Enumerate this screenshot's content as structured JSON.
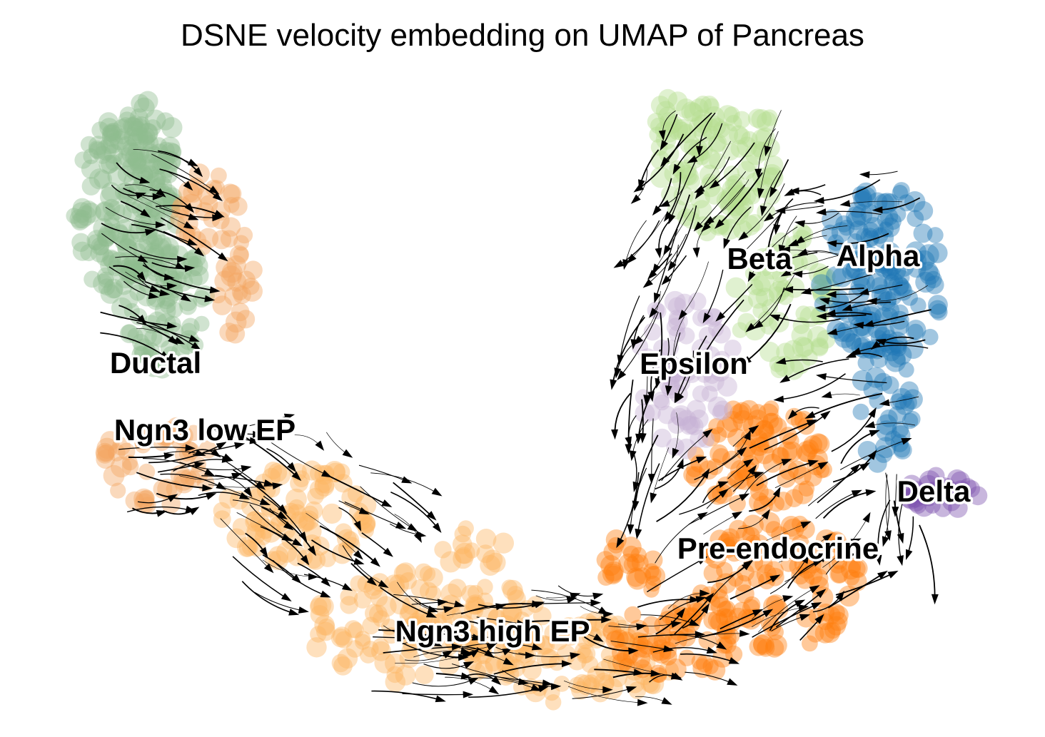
{
  "chart_data": {
    "type": "scatter",
    "title": "DSNE velocity embedding on UMAP of Pancreas",
    "xlabel": "",
    "ylabel": "",
    "grid": false,
    "axes_visible": false,
    "overlay": "velocity streamlines with arrowheads (black)",
    "clusters": [
      {
        "name": "Ductal",
        "color": "#8fbc8f"
      },
      {
        "name": "Ngn3 low EP",
        "color": "#f4a460"
      },
      {
        "name": "Ngn3 high EP",
        "color": "#fdb462"
      },
      {
        "name": "Pre-endocrine",
        "color": "#ff7f0e"
      },
      {
        "name": "Beta",
        "color": "#b5de90"
      },
      {
        "name": "Alpha",
        "color": "#1f77b4"
      },
      {
        "name": "Epsilon",
        "color": "#c5b0d5"
      },
      {
        "name": "Delta",
        "color": "#7b52ae"
      }
    ],
    "labels": [
      "Ductal",
      "Ngn3 low EP",
      "Ngn3 high EP",
      "Pre-endocrine",
      "Beta",
      "Alpha",
      "Epsilon",
      "Delta"
    ]
  }
}
